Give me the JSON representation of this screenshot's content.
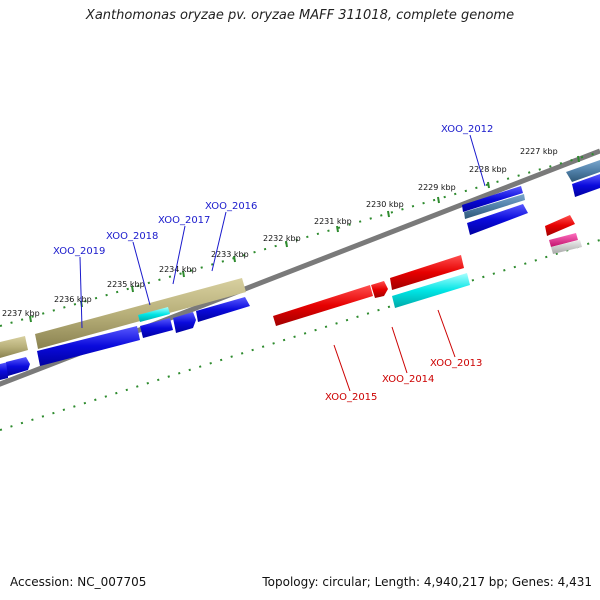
{
  "title": "Xanthomonas oryzae pv. oryzae MAFF 311018, complete genome",
  "footer": {
    "accession": "Accession: NC_007705",
    "topology": "Topology: circular; Length: 4,940,217 bp; Genes: 4,431"
  },
  "colors": {
    "backbone": "#7a7a7a",
    "tick": "#2e8b2e",
    "gene_blue": "#0a0adc",
    "gene_red": "#e60000",
    "gene_cyan": "#00e5e5",
    "gene_olive": "#b8b07a",
    "gene_steel": "#4f7fa8",
    "gene_pink": "#e0208a",
    "gene_gray": "#c8c8c8",
    "label_blue": "#1a1acc",
    "label_red": "#cc0000"
  },
  "ticks": {
    "labels": [
      "2227 kbp",
      "2228 kbp",
      "2229 kbp",
      "2230 kbp",
      "2231 kbp",
      "2232 kbp",
      "2233 kbp",
      "2234 kbp",
      "2235 kbp",
      "2236 kbp",
      "2237 kbp"
    ]
  },
  "gene_labels": {
    "top": [
      "XOO_2012",
      "XOO_2016",
      "XOO_2017",
      "XOO_2018",
      "XOO_2019"
    ],
    "bottom": [
      "XOO_2013",
      "XOO_2014",
      "XOO_2015"
    ]
  }
}
